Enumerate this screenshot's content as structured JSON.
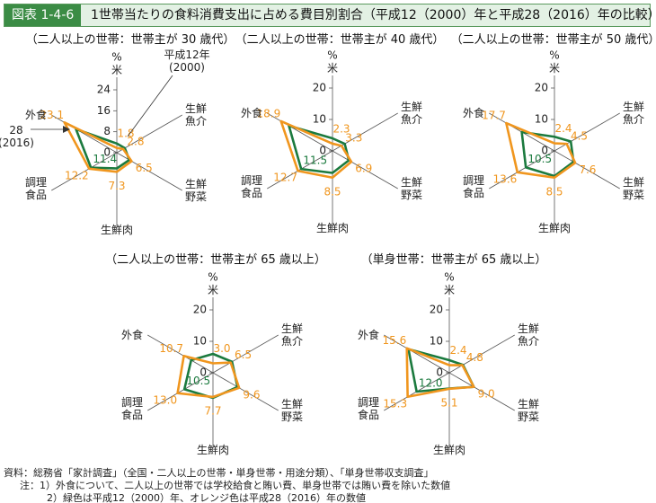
{
  "header": {
    "badge": "図表 1-4-6",
    "title": "1世帯当たりの食料消費支出に占める費目別割合（平成12（2000）年と平成28（2016）年の比較）"
  },
  "notes": [
    "資料：総務省「家計調査」（全国・二人以上の世帯・単身世帯・用途分類）、「単身世帯収支調査」",
    "注：1）外食について、二人以上の世帯では学校給食と賄い費、単身世帯では賄い費を除いた数値",
    "2）緑色は平成12（2000）年、オレンジ色は平成28（2016）年の数値"
  ],
  "chart_data": [
    {
      "type": "radar",
      "title": "（二人以上の世帯：世帯主が 30 歳代）",
      "ylabel": "%",
      "categories": [
        "米",
        "生鮮\n魚介",
        "生鮮\n野菜",
        "生鮮肉",
        "調理\n食品",
        "外食"
      ],
      "ylim": [
        0,
        24
      ],
      "yticks": [
        0,
        8,
        16,
        24
      ],
      "annotations": [
        "平成12年\n(2000)",
        "28\n(2016)"
      ],
      "series": [
        {
          "color": "#1b7a3e",
          "values": [
            3.5,
            3.5,
            5.5,
            6,
            11.4,
            18
          ],
          "value_labels": [
            null,
            null,
            null,
            null,
            "11.4",
            null
          ]
        },
        {
          "color": "#f0961e",
          "values": [
            1.8,
            2.8,
            6.5,
            7.3,
            12.2,
            23.1
          ]
        }
      ]
    },
    {
      "type": "radar",
      "title": "（二人以上の世帯：世帯主が 40 歳代）",
      "ylabel": "%",
      "categories": [
        "米",
        "生鮮\n魚介",
        "生鮮\n野菜",
        "生鮮肉",
        "調理\n食品",
        "外食"
      ],
      "ylim": [
        0,
        20
      ],
      "yticks": [
        0,
        10,
        20
      ],
      "series": [
        {
          "color": "#1b7a3e",
          "values": [
            4,
            4.5,
            6,
            7,
            11.5,
            16
          ],
          "value_labels": [
            null,
            null,
            null,
            null,
            "11.5",
            null
          ]
        },
        {
          "color": "#f0961e",
          "values": [
            2.3,
            3.3,
            6.9,
            8.5,
            12.7,
            18.9
          ]
        }
      ]
    },
    {
      "type": "radar",
      "title": "（二人以上の世帯：世帯主が 50 歳代）",
      "ylabel": "%",
      "categories": [
        "米",
        "生鮮\n魚介",
        "生鮮\n野菜",
        "生鮮肉",
        "調理\n食品",
        "外食"
      ],
      "ylim": [
        0,
        20
      ],
      "yticks": [
        0,
        10,
        20
      ],
      "series": [
        {
          "color": "#1b7a3e",
          "values": [
            4.5,
            6,
            7,
            8,
            10.5,
            12
          ],
          "value_labels": [
            null,
            null,
            null,
            null,
            "10.5",
            null
          ]
        },
        {
          "color": "#f0961e",
          "values": [
            2.4,
            4.5,
            7.6,
            8.5,
            13.6,
            17.7
          ]
        }
      ]
    },
    {
      "type": "radar",
      "title": "（二人以上の世帯：世帯主が 65 歳以上）",
      "ylabel": "%",
      "categories": [
        "米",
        "生鮮\n魚介",
        "生鮮\n野菜",
        "生鮮肉",
        "調理\n食品",
        "外食"
      ],
      "ylim": [
        0,
        20
      ],
      "yticks": [
        0,
        10,
        20
      ],
      "series": [
        {
          "color": "#1b7a3e",
          "values": [
            6,
            7,
            9,
            8,
            10.5,
            8
          ],
          "value_labels": [
            null,
            null,
            null,
            null,
            "10.5",
            null
          ]
        },
        {
          "color": "#f0961e",
          "values": [
            3,
            6.5,
            9.6,
            7.7,
            13,
            10.7
          ],
          "value_labels": [
            "3.0",
            "6.5",
            "9.6",
            "7.7",
            "13.0",
            "10.7"
          ]
        }
      ]
    },
    {
      "type": "radar",
      "title": "（単身世帯：世帯主が 65 歳以上）",
      "ylabel": "%",
      "categories": [
        "米",
        "生鮮\n魚介",
        "生鮮\n野菜",
        "生鮮肉",
        "調理\n食品",
        "外食"
      ],
      "ylim": [
        0,
        20
      ],
      "yticks": [
        0,
        10,
        20
      ],
      "series": [
        {
          "color": "#1b7a3e",
          "values": [
            4,
            5,
            9,
            5,
            12,
            15
          ],
          "value_labels": [
            null,
            null,
            null,
            null,
            "12.0",
            null
          ]
        },
        {
          "color": "#f0961e",
          "values": [
            2.4,
            4.8,
            9,
            5.1,
            15.3,
            15.6
          ],
          "value_labels": [
            "2.4",
            "4.8",
            "9.0",
            "5.1",
            "15.3",
            "15.6"
          ]
        }
      ]
    }
  ]
}
